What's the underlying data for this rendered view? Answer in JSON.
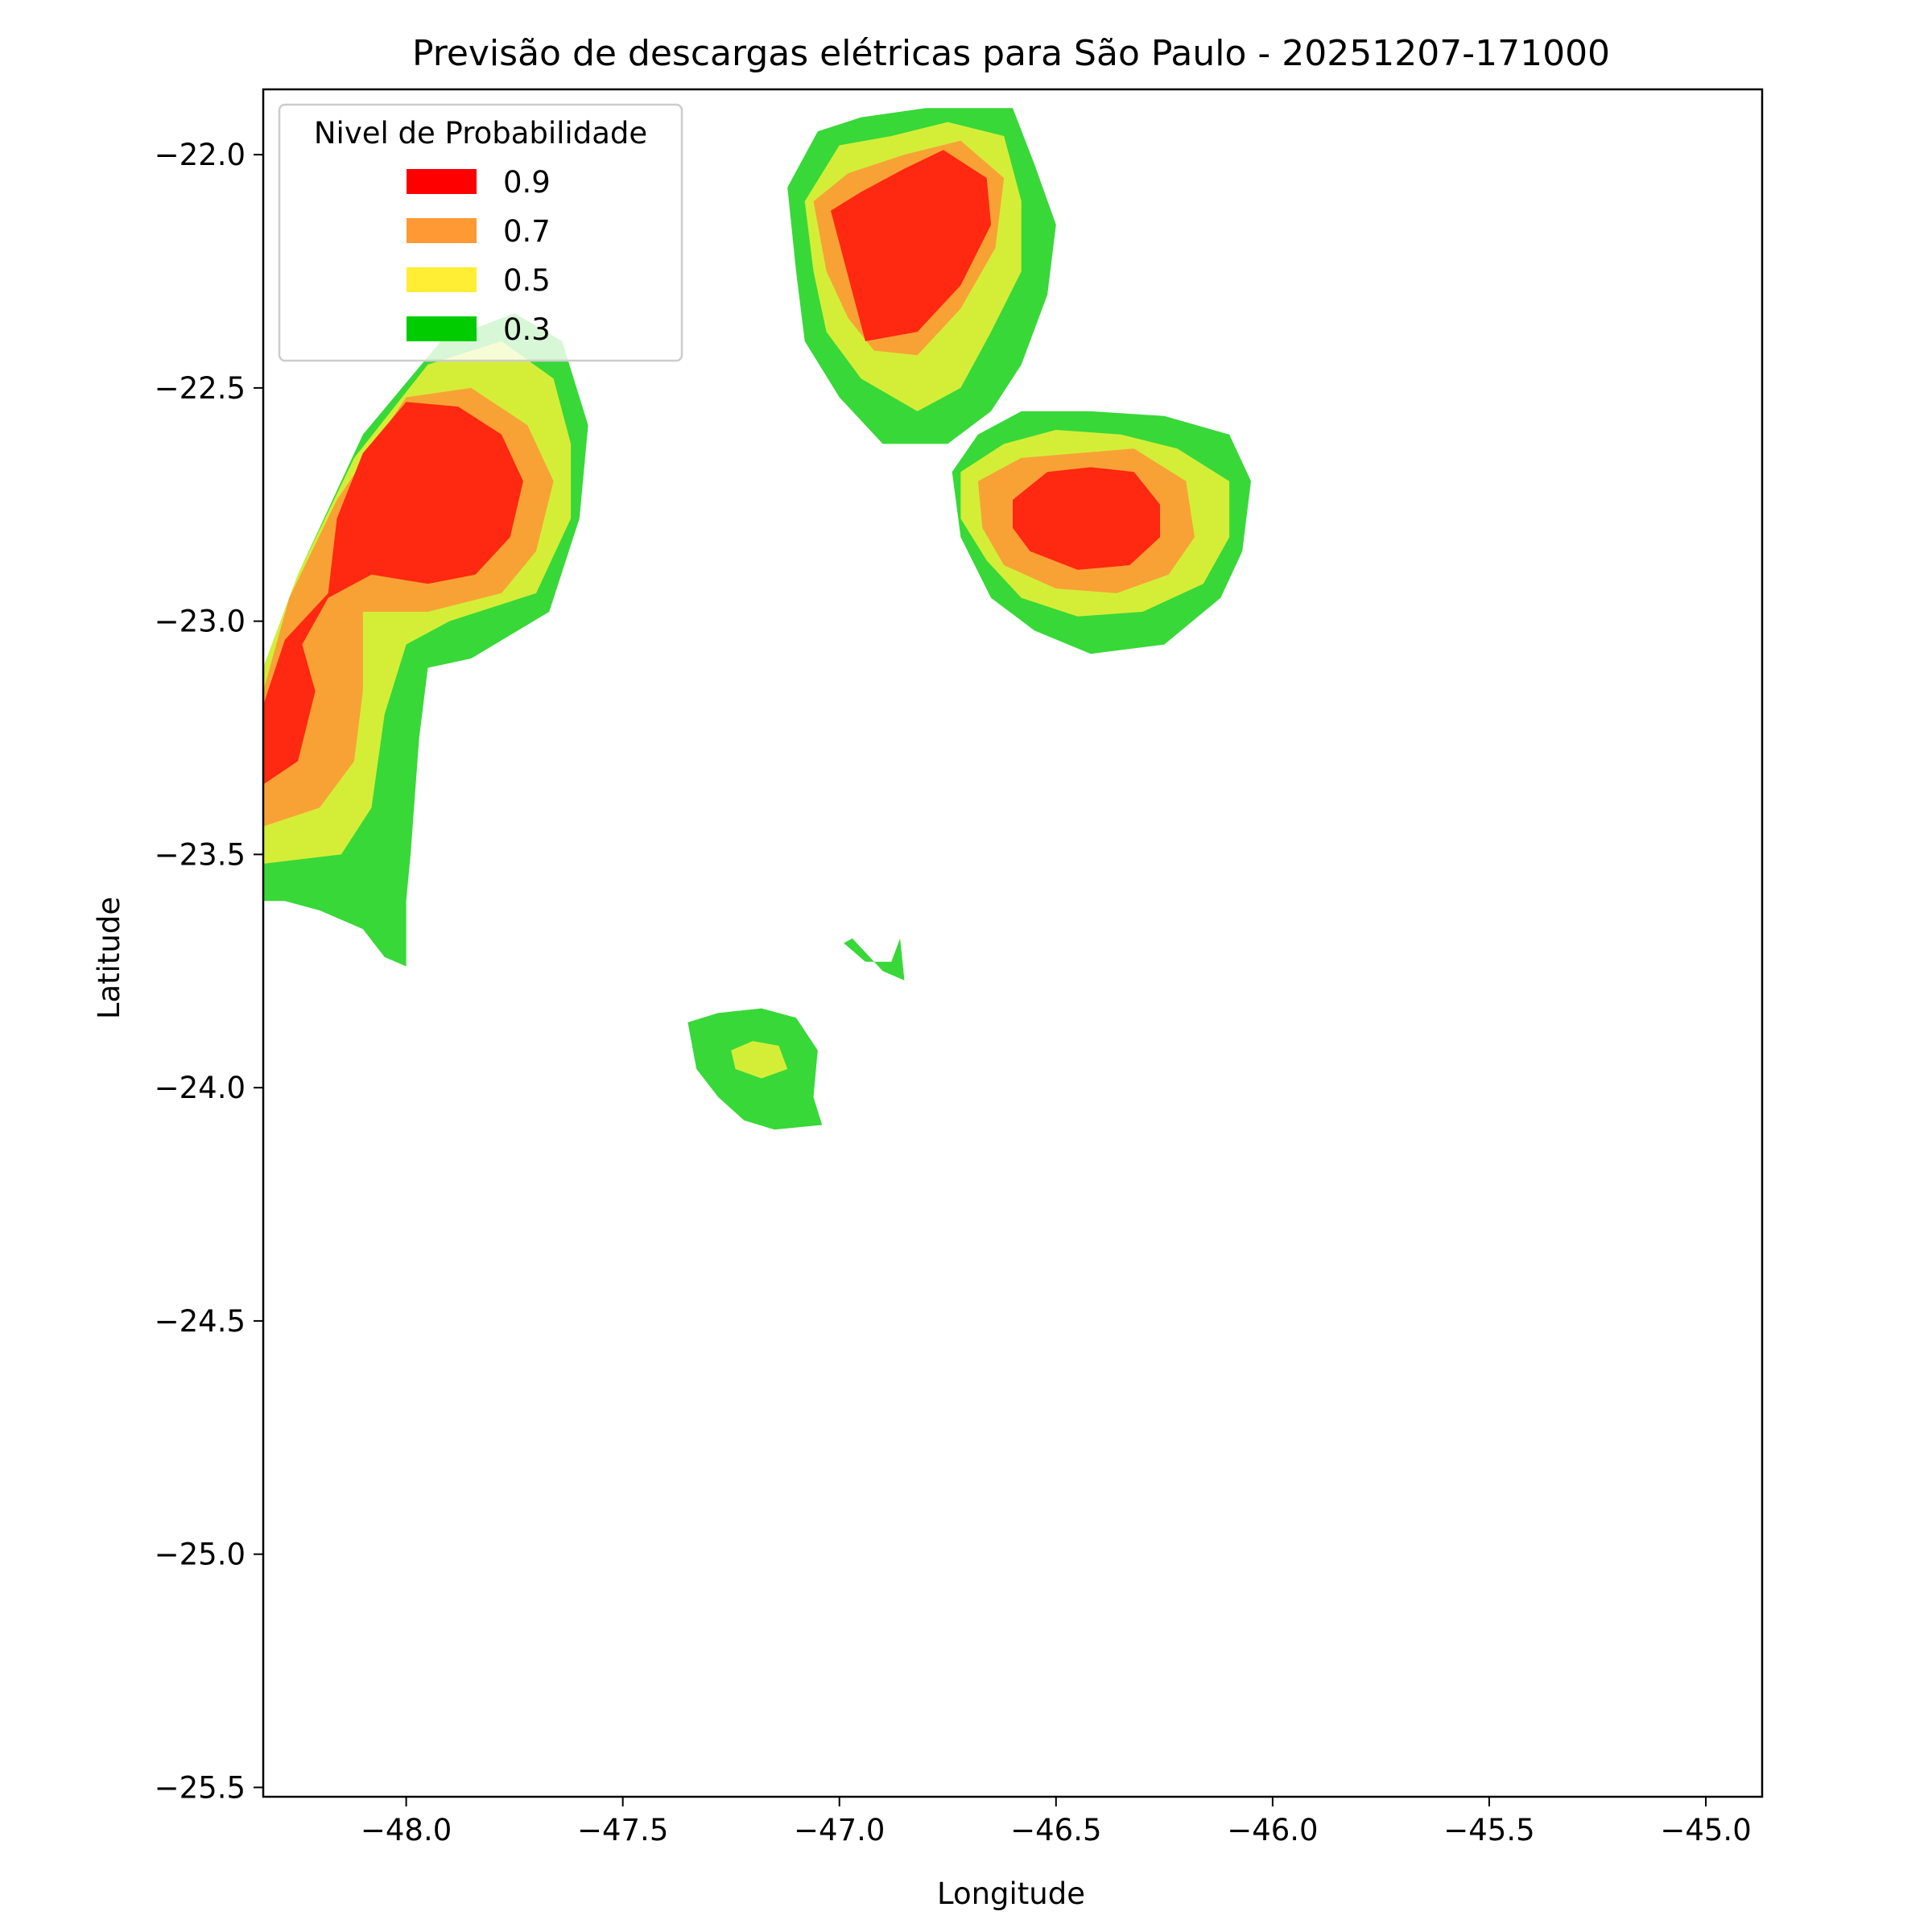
{
  "chart_data": {
    "type": "contourf",
    "title": "Previsão de descargas elétricas para São Paulo - 20251207-171000",
    "xlabel": "Longitude",
    "ylabel": "Latitude",
    "xlim": [
      -48.33,
      -44.87
    ],
    "ylim": [
      -25.52,
      -21.86
    ],
    "xticks": [
      -48.0,
      -47.5,
      -47.0,
      -46.5,
      -46.0,
      -45.5,
      -45.0
    ],
    "xtick_labels": [
      "−48.0",
      "−47.5",
      "−47.0",
      "−46.5",
      "−46.0",
      "−45.5",
      "−45.0"
    ],
    "yticks": [
      -22.0,
      -22.5,
      -23.0,
      -23.5,
      -24.0,
      -24.5,
      -25.0,
      -25.5
    ],
    "ytick_labels": [
      "−22.0",
      "−22.5",
      "−23.0",
      "−23.5",
      "−24.0",
      "−24.5",
      "−25.0",
      "−25.5"
    ],
    "grid": false,
    "legend": {
      "title": "Nivel de Probabilidade",
      "placement": "upper-left",
      "entries": [
        {
          "label": "0.9",
          "color": "#ff0000"
        },
        {
          "label": "0.7",
          "color": "#ff9933"
        },
        {
          "label": "0.5",
          "color": "#ffee33"
        },
        {
          "label": "0.3",
          "color": "#00cc00"
        }
      ]
    },
    "levels": [
      0.3,
      0.5,
      0.7,
      0.9
    ],
    "fill_colors": {
      "0.3": "#38d838",
      "0.5": "#d4ee38",
      "0.7": "#f8a236",
      "0.9": "#ff2810"
    },
    "regions": [
      {
        "name": "west-cell",
        "bands": [
          {
            "level": 0.3,
            "points": [
              [
                -48.33,
                -23.6
              ],
              [
                -48.33,
                -23.1
              ],
              [
                -48.25,
                -22.9
              ],
              [
                -48.1,
                -22.6
              ],
              [
                -47.92,
                -22.4
              ],
              [
                -47.75,
                -22.34
              ],
              [
                -47.64,
                -22.4
              ],
              [
                -47.58,
                -22.58
              ],
              [
                -47.6,
                -22.78
              ],
              [
                -47.67,
                -22.98
              ],
              [
                -47.85,
                -23.08
              ],
              [
                -47.95,
                -23.1
              ],
              [
                -47.97,
                -23.25
              ],
              [
                -47.99,
                -23.5
              ],
              [
                -48.0,
                -23.6
              ],
              [
                -48.0,
                -23.74
              ],
              [
                -48.05,
                -23.72
              ],
              [
                -48.1,
                -23.66
              ],
              [
                -48.2,
                -23.62
              ],
              [
                -48.28,
                -23.6
              ]
            ]
          },
          {
            "level": 0.5,
            "points": [
              [
                -48.33,
                -23.52
              ],
              [
                -48.33,
                -23.1
              ],
              [
                -48.25,
                -22.9
              ],
              [
                -48.12,
                -22.65
              ],
              [
                -47.95,
                -22.45
              ],
              [
                -47.78,
                -22.4
              ],
              [
                -47.66,
                -22.48
              ],
              [
                -47.62,
                -22.62
              ],
              [
                -47.62,
                -22.78
              ],
              [
                -47.7,
                -22.94
              ],
              [
                -47.9,
                -23.0
              ],
              [
                -48.0,
                -23.05
              ],
              [
                -48.05,
                -23.2
              ],
              [
                -48.08,
                -23.4
              ],
              [
                -48.15,
                -23.5
              ]
            ]
          },
          {
            "level": 0.7,
            "points": [
              [
                -48.33,
                -23.44
              ],
              [
                -48.33,
                -23.15
              ],
              [
                -48.27,
                -22.95
              ],
              [
                -48.16,
                -22.74
              ],
              [
                -48.0,
                -22.52
              ],
              [
                -47.85,
                -22.5
              ],
              [
                -47.72,
                -22.58
              ],
              [
                -47.66,
                -22.7
              ],
              [
                -47.7,
                -22.85
              ],
              [
                -47.78,
                -22.94
              ],
              [
                -47.95,
                -22.98
              ],
              [
                -48.1,
                -22.98
              ],
              [
                -48.1,
                -23.15
              ],
              [
                -48.12,
                -23.3
              ],
              [
                -48.2,
                -23.4
              ]
            ]
          },
          {
            "level": 0.9,
            "points": [
              [
                -48.33,
                -23.35
              ],
              [
                -48.33,
                -23.18
              ],
              [
                -48.28,
                -23.04
              ],
              [
                -48.18,
                -22.94
              ],
              [
                -48.16,
                -22.78
              ],
              [
                -48.1,
                -22.64
              ],
              [
                -48.0,
                -22.53
              ],
              [
                -47.88,
                -22.54
              ],
              [
                -47.78,
                -22.6
              ],
              [
                -47.73,
                -22.7
              ],
              [
                -47.76,
                -22.82
              ],
              [
                -47.84,
                -22.9
              ],
              [
                -47.95,
                -22.92
              ],
              [
                -48.08,
                -22.9
              ],
              [
                -48.18,
                -22.95
              ],
              [
                -48.24,
                -23.05
              ],
              [
                -48.21,
                -23.15
              ],
              [
                -48.25,
                -23.3
              ]
            ]
          }
        ]
      },
      {
        "name": "north-cell",
        "bands": [
          {
            "level": 0.3,
            "points": [
              [
                -47.12,
                -22.07
              ],
              [
                -47.05,
                -21.95
              ],
              [
                -46.95,
                -21.92
              ],
              [
                -46.8,
                -21.9
              ],
              [
                -46.6,
                -21.9
              ],
              [
                -46.55,
                -22.02
              ],
              [
                -46.5,
                -22.15
              ],
              [
                -46.52,
                -22.3
              ],
              [
                -46.58,
                -22.45
              ],
              [
                -46.65,
                -22.55
              ],
              [
                -46.75,
                -22.62
              ],
              [
                -46.9,
                -22.62
              ],
              [
                -47.0,
                -22.52
              ],
              [
                -47.08,
                -22.4
              ],
              [
                -47.1,
                -22.25
              ]
            ]
          },
          {
            "level": 0.5,
            "points": [
              [
                -47.08,
                -22.1
              ],
              [
                -47.0,
                -21.98
              ],
              [
                -46.88,
                -21.96
              ],
              [
                -46.75,
                -21.93
              ],
              [
                -46.62,
                -21.96
              ],
              [
                -46.58,
                -22.1
              ],
              [
                -46.58,
                -22.25
              ],
              [
                -46.65,
                -22.38
              ],
              [
                -46.72,
                -22.5
              ],
              [
                -46.82,
                -22.55
              ],
              [
                -46.95,
                -22.48
              ],
              [
                -47.03,
                -22.38
              ],
              [
                -47.06,
                -22.25
              ]
            ]
          },
          {
            "level": 0.7,
            "points": [
              [
                -47.06,
                -22.1
              ],
              [
                -46.98,
                -22.04
              ],
              [
                -46.85,
                -22.0
              ],
              [
                -46.72,
                -21.97
              ],
              [
                -46.62,
                -22.05
              ],
              [
                -46.64,
                -22.2
              ],
              [
                -46.72,
                -22.33
              ],
              [
                -46.82,
                -22.43
              ],
              [
                -46.92,
                -22.42
              ],
              [
                -46.98,
                -22.35
              ],
              [
                -47.03,
                -22.25
              ]
            ]
          },
          {
            "level": 0.9,
            "points": [
              [
                -47.02,
                -22.12
              ],
              [
                -46.95,
                -22.08
              ],
              [
                -46.85,
                -22.03
              ],
              [
                -46.76,
                -21.99
              ],
              [
                -46.66,
                -22.05
              ],
              [
                -46.65,
                -22.15
              ],
              [
                -46.72,
                -22.28
              ],
              [
                -46.82,
                -22.38
              ],
              [
                -46.94,
                -22.4
              ]
            ]
          }
        ]
      },
      {
        "name": "east-cell",
        "bands": [
          {
            "level": 0.3,
            "points": [
              [
                -46.74,
                -22.68
              ],
              [
                -46.68,
                -22.6
              ],
              [
                -46.58,
                -22.55
              ],
              [
                -46.42,
                -22.55
              ],
              [
                -46.25,
                -22.56
              ],
              [
                -46.1,
                -22.6
              ],
              [
                -46.05,
                -22.7
              ],
              [
                -46.07,
                -22.85
              ],
              [
                -46.12,
                -22.95
              ],
              [
                -46.25,
                -23.05
              ],
              [
                -46.42,
                -23.07
              ],
              [
                -46.55,
                -23.02
              ],
              [
                -46.65,
                -22.95
              ],
              [
                -46.72,
                -22.82
              ]
            ]
          },
          {
            "level": 0.5,
            "points": [
              [
                -46.72,
                -22.68
              ],
              [
                -46.62,
                -22.62
              ],
              [
                -46.5,
                -22.59
              ],
              [
                -46.35,
                -22.6
              ],
              [
                -46.22,
                -22.63
              ],
              [
                -46.1,
                -22.7
              ],
              [
                -46.1,
                -22.82
              ],
              [
                -46.16,
                -22.92
              ],
              [
                -46.3,
                -22.98
              ],
              [
                -46.45,
                -22.99
              ],
              [
                -46.58,
                -22.95
              ],
              [
                -46.66,
                -22.87
              ],
              [
                -46.72,
                -22.78
              ]
            ]
          },
          {
            "level": 0.7,
            "points": [
              [
                -46.68,
                -22.7
              ],
              [
                -46.58,
                -22.65
              ],
              [
                -46.45,
                -22.64
              ],
              [
                -46.32,
                -22.63
              ],
              [
                -46.2,
                -22.7
              ],
              [
                -46.18,
                -22.82
              ],
              [
                -46.24,
                -22.9
              ],
              [
                -46.36,
                -22.94
              ],
              [
                -46.5,
                -22.93
              ],
              [
                -46.62,
                -22.88
              ],
              [
                -46.67,
                -22.8
              ]
            ]
          },
          {
            "level": 0.9,
            "points": [
              [
                -46.6,
                -22.74
              ],
              [
                -46.52,
                -22.68
              ],
              [
                -46.42,
                -22.67
              ],
              [
                -46.32,
                -22.68
              ],
              [
                -46.26,
                -22.75
              ],
              [
                -46.26,
                -22.82
              ],
              [
                -46.33,
                -22.88
              ],
              [
                -46.45,
                -22.89
              ],
              [
                -46.56,
                -22.85
              ],
              [
                -46.6,
                -22.8
              ]
            ]
          }
        ]
      },
      {
        "name": "south-cell",
        "bands": [
          {
            "level": 0.3,
            "points": [
              [
                -47.35,
                -23.86
              ],
              [
                -47.28,
                -23.84
              ],
              [
                -47.18,
                -23.83
              ],
              [
                -47.1,
                -23.85
              ],
              [
                -47.05,
                -23.92
              ],
              [
                -47.06,
                -24.02
              ],
              [
                -47.04,
                -24.08
              ],
              [
                -47.15,
                -24.09
              ],
              [
                -47.22,
                -24.07
              ],
              [
                -47.28,
                -24.02
              ],
              [
                -47.33,
                -23.96
              ]
            ]
          },
          {
            "level": 0.5,
            "points": [
              [
                -47.25,
                -23.92
              ],
              [
                -47.2,
                -23.9
              ],
              [
                -47.14,
                -23.91
              ],
              [
                -47.12,
                -23.96
              ],
              [
                -47.18,
                -23.98
              ],
              [
                -47.24,
                -23.96
              ]
            ]
          }
        ]
      },
      {
        "name": "small-fragment",
        "bands": [
          {
            "level": 0.3,
            "points": [
              [
                -46.97,
                -23.68
              ],
              [
                -46.93,
                -23.72
              ],
              [
                -46.9,
                -23.75
              ],
              [
                -46.85,
                -23.77
              ],
              [
                -46.86,
                -23.68
              ],
              [
                -46.88,
                -23.73
              ],
              [
                -46.94,
                -23.73
              ],
              [
                -46.99,
                -23.69
              ]
            ]
          }
        ]
      }
    ]
  }
}
